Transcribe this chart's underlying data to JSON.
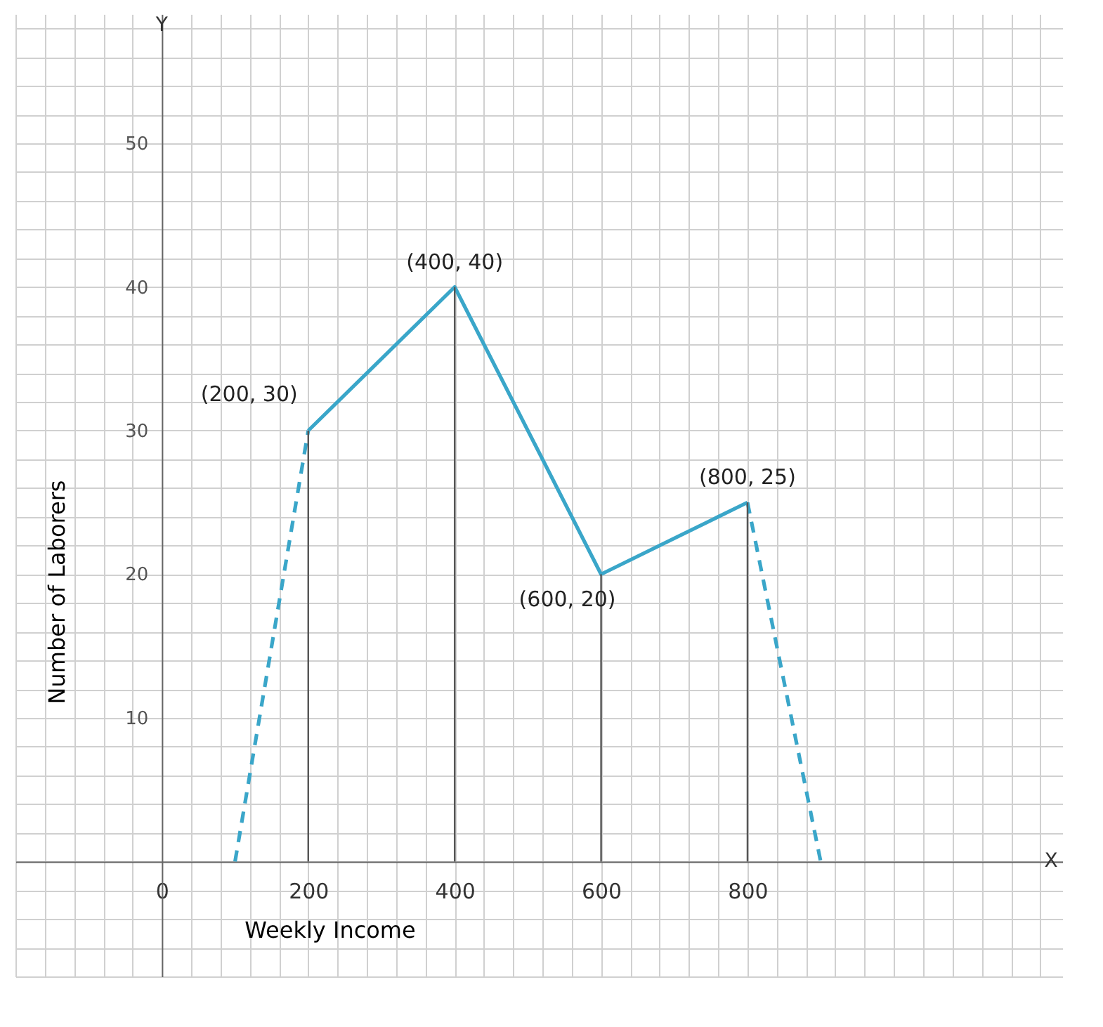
{
  "chart_data": {
    "type": "line",
    "xlabel": "Weekly Income",
    "ylabel": "Number of Laborers",
    "series": [
      {
        "type": "line",
        "color": "#3aa6c9",
        "x": [
          200,
          400,
          600,
          800
        ],
        "values": [
          30,
          40,
          20,
          25
        ],
        "line_style": "solid"
      },
      {
        "type": "line",
        "color": "#3aa6c9",
        "x": [
          100,
          200
        ],
        "values": [
          0,
          30
        ],
        "line_style": "dashed"
      },
      {
        "type": "line",
        "color": "#3aa6c9",
        "x": [
          800,
          900
        ],
        "values": [
          25,
          0
        ],
        "line_style": "dashed"
      },
      {
        "type": "line",
        "color": "#555555",
        "x": [
          200,
          200
        ],
        "values": [
          0,
          30
        ],
        "line_style": "solid"
      },
      {
        "type": "line",
        "color": "#555555",
        "x": [
          400,
          400
        ],
        "values": [
          0,
          40
        ],
        "line_style": "solid"
      },
      {
        "type": "line",
        "color": "#555555",
        "x": [
          600,
          600
        ],
        "values": [
          0,
          20
        ],
        "line_style": "solid"
      },
      {
        "type": "line",
        "color": "#555555",
        "x": [
          800,
          800
        ],
        "values": [
          0,
          25
        ],
        "line_style": "solid"
      }
    ],
    "annotations": [
      {
        "text": "(200, 30)",
        "x": 200,
        "y": 30
      },
      {
        "text": "(400, 40)",
        "x": 400,
        "y": 40
      },
      {
        "text": "(600, 20)",
        "x": 600,
        "y": 20
      },
      {
        "text": "(800, 25)",
        "x": 800,
        "y": 25
      },
      "X",
      "Y"
    ],
    "xlim": [
      -200,
      1230
    ],
    "ylim": [
      -8,
      59
    ],
    "xticks": [
      {
        "value": -200,
        "label": null
      },
      {
        "value": -160,
        "label": null
      },
      {
        "value": -120,
        "label": null
      },
      {
        "value": -80,
        "label": null
      },
      {
        "value": -40,
        "label": null
      },
      0,
      {
        "value": 40,
        "label": null
      },
      {
        "value": 80,
        "label": null
      },
      {
        "value": 120,
        "label": null
      },
      {
        "value": 160,
        "label": null
      },
      200,
      {
        "value": 240,
        "label": null
      },
      {
        "value": 280,
        "label": null
      },
      {
        "value": 320,
        "label": null
      },
      {
        "value": 360,
        "label": null
      },
      400,
      {
        "value": 440,
        "label": null
      },
      {
        "value": 480,
        "label": null
      },
      {
        "value": 520,
        "label": null
      },
      {
        "value": 560,
        "label": null
      },
      600,
      {
        "value": 640,
        "label": null
      },
      {
        "value": 680,
        "label": null
      },
      {
        "value": 720,
        "label": null
      },
      {
        "value": 760,
        "label": null
      },
      800,
      {
        "value": 840,
        "label": null
      },
      {
        "value": 880,
        "label": null
      },
      {
        "value": 920,
        "label": null
      },
      {
        "value": 960,
        "label": null
      },
      {
        "value": 1000,
        "label": null
      },
      {
        "value": 1040,
        "label": null
      },
      {
        "value": 1080,
        "label": null
      },
      {
        "value": 1120,
        "label": null
      },
      {
        "value": 1160,
        "label": null
      },
      {
        "value": 1200,
        "label": null
      }
    ],
    "yticks": [
      {
        "value": -8,
        "label": null
      },
      {
        "value": -6,
        "label": null
      },
      {
        "value": -4,
        "label": null
      },
      {
        "value": -2,
        "label": null
      },
      {
        "value": 0,
        "label": null
      },
      {
        "value": 2,
        "label": null
      },
      {
        "value": 4,
        "label": null
      },
      {
        "value": 6,
        "label": null
      },
      {
        "value": 8,
        "label": null
      },
      10,
      {
        "value": 12,
        "label": null
      },
      {
        "value": 14,
        "label": null
      },
      {
        "value": 16,
        "label": null
      },
      {
        "value": 18,
        "label": null
      },
      20,
      {
        "value": 22,
        "label": null
      },
      {
        "value": 24,
        "label": null
      },
      {
        "value": 26,
        "label": null
      },
      {
        "value": 28,
        "label": null
      },
      30,
      {
        "value": 32,
        "label": null
      },
      {
        "value": 34,
        "label": null
      },
      {
        "value": 36,
        "label": null
      },
      {
        "value": 38,
        "label": null
      },
      40,
      {
        "value": 42,
        "label": null
      },
      {
        "value": 44,
        "label": null
      },
      {
        "value": 46,
        "label": null
      },
      {
        "value": 48,
        "label": null
      },
      50,
      {
        "value": 52,
        "label": null
      },
      {
        "value": 54,
        "label": null
      },
      {
        "value": 56,
        "label": null
      },
      {
        "value": 58,
        "label": null
      }
    ],
    "grid": true,
    "marker": "none"
  }
}
